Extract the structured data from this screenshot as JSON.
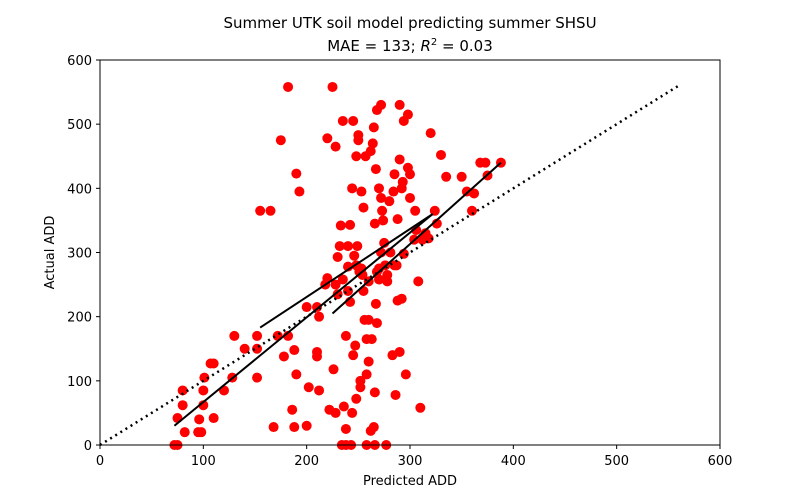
{
  "chart_data": {
    "type": "scatter",
    "title": "Summer UTK soil model predicting summer SHSU",
    "subtitle_prefix": "MAE = 133; ",
    "subtitle_r": "R",
    "subtitle_exp": "2",
    "subtitle_suffix": " = 0.03",
    "xlabel": "Predicted ADD",
    "ylabel": "Actual ADD",
    "xlim": [
      0,
      600
    ],
    "ylim": [
      0,
      600
    ],
    "xticks": [
      0,
      100,
      200,
      300,
      400,
      500,
      600
    ],
    "yticks": [
      0,
      100,
      200,
      300,
      400,
      500,
      600
    ],
    "grid": false,
    "marker_color": "#ff0000",
    "line_color": "#000000",
    "points": [
      [
        72,
        0
      ],
      [
        75,
        0
      ],
      [
        75,
        42
      ],
      [
        80,
        62
      ],
      [
        80,
        85
      ],
      [
        82,
        20
      ],
      [
        95,
        20
      ],
      [
        96,
        40
      ],
      [
        98,
        20
      ],
      [
        100,
        62
      ],
      [
        100,
        85
      ],
      [
        101,
        105
      ],
      [
        107,
        127
      ],
      [
        110,
        127
      ],
      [
        110,
        42
      ],
      [
        120,
        85
      ],
      [
        128,
        105
      ],
      [
        130,
        170
      ],
      [
        140,
        150
      ],
      [
        152,
        170
      ],
      [
        152,
        150
      ],
      [
        152,
        105
      ],
      [
        155,
        365
      ],
      [
        165,
        365
      ],
      [
        168,
        28
      ],
      [
        172,
        170
      ],
      [
        175,
        475
      ],
      [
        178,
        138
      ],
      [
        182,
        558
      ],
      [
        182,
        170
      ],
      [
        186,
        55
      ],
      [
        188,
        28
      ],
      [
        188,
        148
      ],
      [
        190,
        110
      ],
      [
        190,
        423
      ],
      [
        193,
        395
      ],
      [
        200,
        30
      ],
      [
        200,
        215
      ],
      [
        202,
        90
      ],
      [
        210,
        215
      ],
      [
        210,
        145
      ],
      [
        210,
        138
      ],
      [
        212,
        85
      ],
      [
        212,
        200
      ],
      [
        218,
        250
      ],
      [
        220,
        478
      ],
      [
        220,
        260
      ],
      [
        222,
        55
      ],
      [
        225,
        558
      ],
      [
        226,
        118
      ],
      [
        228,
        250
      ],
      [
        228,
        465
      ],
      [
        228,
        50
      ],
      [
        230,
        293
      ],
      [
        230,
        235
      ],
      [
        232,
        310
      ],
      [
        233,
        342
      ],
      [
        234,
        0
      ],
      [
        235,
        505
      ],
      [
        235,
        258
      ],
      [
        236,
        60
      ],
      [
        238,
        25
      ],
      [
        238,
        170
      ],
      [
        238,
        0
      ],
      [
        240,
        278
      ],
      [
        240,
        240
      ],
      [
        240,
        310
      ],
      [
        242,
        343
      ],
      [
        242,
        223
      ],
      [
        243,
        0
      ],
      [
        244,
        50
      ],
      [
        244,
        400
      ],
      [
        245,
        140
      ],
      [
        245,
        505
      ],
      [
        246,
        295
      ],
      [
        247,
        155
      ],
      [
        248,
        450
      ],
      [
        248,
        280
      ],
      [
        248,
        72
      ],
      [
        249,
        310
      ],
      [
        250,
        483
      ],
      [
        250,
        475
      ],
      [
        251,
        270
      ],
      [
        252,
        90
      ],
      [
        252,
        100
      ],
      [
        253,
        395
      ],
      [
        253,
        275
      ],
      [
        254,
        265
      ],
      [
        255,
        240
      ],
      [
        255,
        370
      ],
      [
        256,
        195
      ],
      [
        257,
        450
      ],
      [
        258,
        165
      ],
      [
        258,
        110
      ],
      [
        258,
        0
      ],
      [
        260,
        130
      ],
      [
        260,
        255
      ],
      [
        260,
        195
      ],
      [
        262,
        458
      ],
      [
        262,
        22
      ],
      [
        263,
        165
      ],
      [
        264,
        470
      ],
      [
        265,
        495
      ],
      [
        265,
        28
      ],
      [
        266,
        345
      ],
      [
        266,
        82
      ],
      [
        266,
        0
      ],
      [
        267,
        220
      ],
      [
        267,
        430
      ],
      [
        268,
        522
      ],
      [
        268,
        270
      ],
      [
        268,
        190
      ],
      [
        270,
        275
      ],
      [
        270,
        400
      ],
      [
        270,
        258
      ],
      [
        272,
        530
      ],
      [
        272,
        385
      ],
      [
        272,
        300
      ],
      [
        273,
        365
      ],
      [
        274,
        350
      ],
      [
        275,
        315
      ],
      [
        276,
        280
      ],
      [
        277,
        0
      ],
      [
        278,
        265
      ],
      [
        278,
        255
      ],
      [
        280,
        380
      ],
      [
        281,
        300
      ],
      [
        283,
        140
      ],
      [
        284,
        395
      ],
      [
        285,
        280
      ],
      [
        285,
        422
      ],
      [
        286,
        78
      ],
      [
        287,
        280
      ],
      [
        288,
        225
      ],
      [
        288,
        352
      ],
      [
        290,
        530
      ],
      [
        290,
        145
      ],
      [
        290,
        445
      ],
      [
        292,
        228
      ],
      [
        292,
        400
      ],
      [
        293,
        410
      ],
      [
        294,
        298
      ],
      [
        294,
        505
      ],
      [
        296,
        110
      ],
      [
        298,
        432
      ],
      [
        298,
        515
      ],
      [
        300,
        385
      ],
      [
        300,
        422
      ],
      [
        304,
        320
      ],
      [
        305,
        365
      ],
      [
        306,
        335
      ],
      [
        308,
        255
      ],
      [
        310,
        58
      ],
      [
        312,
        320
      ],
      [
        315,
        330
      ],
      [
        318,
        322
      ],
      [
        320,
        486
      ],
      [
        324,
        365
      ],
      [
        326,
        345
      ],
      [
        330,
        452
      ],
      [
        335,
        418
      ],
      [
        350,
        418
      ],
      [
        355,
        395
      ],
      [
        360,
        365
      ],
      [
        362,
        392
      ],
      [
        368,
        440
      ],
      [
        373,
        440
      ],
      [
        375,
        420
      ],
      [
        388,
        440
      ]
    ],
    "identity_line": {
      "x": [
        0,
        560
      ],
      "y": [
        0,
        560
      ],
      "style": "dotted"
    },
    "fit_lines": [
      {
        "x": [
          72,
          322
        ],
        "y": [
          30,
          360
        ]
      },
      {
        "x": [
          155,
          322
        ],
        "y": [
          183,
          360
        ]
      },
      {
        "x": [
          225,
          388
        ],
        "y": [
          205,
          440
        ]
      }
    ]
  }
}
